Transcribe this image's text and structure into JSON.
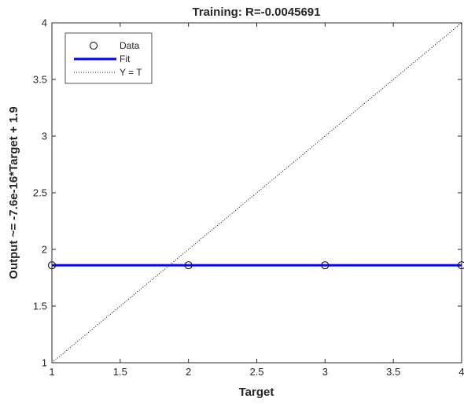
{
  "chart_data": {
    "type": "scatter",
    "title": "Training: R=-0.0045691",
    "xlabel": "Target",
    "ylabel": "Output ~= -7.6e-16*Target + 1.9",
    "xlim": [
      1,
      4
    ],
    "ylim": [
      1,
      4
    ],
    "xticks": [
      "1",
      "1.5",
      "2",
      "2.5",
      "3",
      "3.5",
      "4"
    ],
    "yticks": [
      "1",
      "1.5",
      "2",
      "2.5",
      "3",
      "3.5",
      "4"
    ],
    "grid": false,
    "legend_position": "top-left",
    "series": [
      {
        "name": "Data",
        "kind": "markers",
        "marker": "circle",
        "color": "#000000",
        "x": [
          1,
          2,
          3,
          4
        ],
        "y": [
          1.86,
          1.86,
          1.86,
          1.86
        ]
      },
      {
        "name": "Fit",
        "kind": "line",
        "color": "#0000ff",
        "x": [
          1,
          4
        ],
        "y": [
          1.86,
          1.86
        ]
      },
      {
        "name": "Y = T",
        "kind": "dotted-line",
        "color": "#000000",
        "x": [
          1,
          4
        ],
        "y": [
          1,
          4
        ]
      }
    ]
  }
}
